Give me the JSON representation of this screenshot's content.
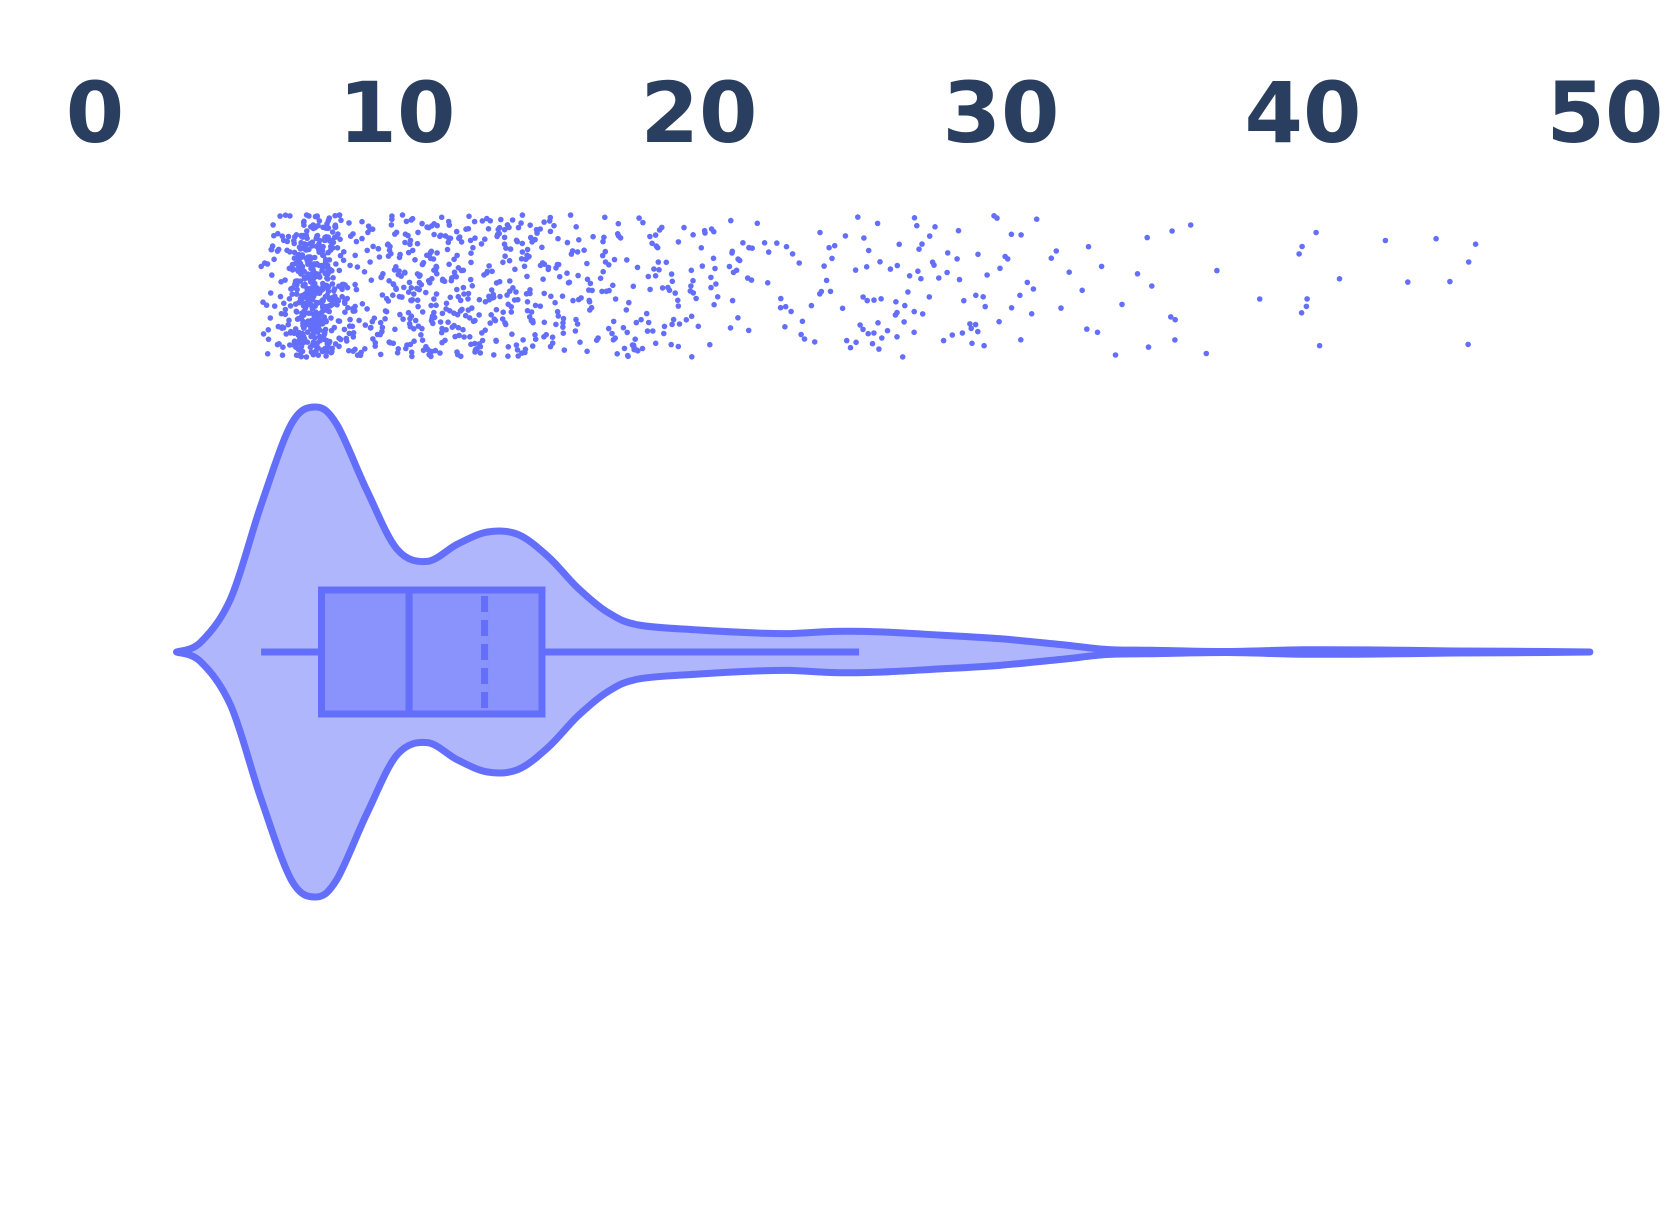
{
  "chart_data": {
    "type": "violin",
    "title": "",
    "xlabel": "",
    "ylabel": "",
    "xlim": [
      0,
      50
    ],
    "x_axis_position": "top",
    "x_ticks": [
      0,
      10,
      20,
      30,
      40,
      50
    ],
    "x_tick_labels": [
      "0",
      "10",
      "20",
      "30",
      "40",
      "50"
    ],
    "grid": false,
    "legend": "none",
    "colors": {
      "line": "#636efa",
      "violin_fill": "#b0b6fc",
      "box_fill": "#8a92fc",
      "points": "#636efa",
      "tick_text": "#2a3f5f"
    },
    "box": {
      "min": 5.5,
      "q1": 7.5,
      "median": 10.4,
      "mean": 12.9,
      "q3": 14.8,
      "upper_whisker": 25.3,
      "show_mean_line": true
    },
    "violin_density": [
      [
        2.7,
        0.0
      ],
      [
        3.5,
        0.04
      ],
      [
        4.5,
        0.22
      ],
      [
        5.5,
        0.6
      ],
      [
        6.5,
        0.93
      ],
      [
        7.3,
        1.0
      ],
      [
        8.0,
        0.93
      ],
      [
        9.0,
        0.66
      ],
      [
        10.0,
        0.42
      ],
      [
        11.0,
        0.37
      ],
      [
        12.0,
        0.44
      ],
      [
        13.0,
        0.49
      ],
      [
        14.0,
        0.48
      ],
      [
        15.0,
        0.39
      ],
      [
        16.0,
        0.26
      ],
      [
        17.0,
        0.16
      ],
      [
        18.0,
        0.11
      ],
      [
        20.0,
        0.09
      ],
      [
        22.0,
        0.077
      ],
      [
        23.0,
        0.075
      ],
      [
        24.5,
        0.084
      ],
      [
        26.0,
        0.082
      ],
      [
        28.0,
        0.069
      ],
      [
        30.0,
        0.054
      ],
      [
        32.0,
        0.03
      ],
      [
        33.5,
        0.01
      ],
      [
        35.0,
        0.007
      ],
      [
        37.5,
        0.002
      ],
      [
        40.0,
        0.009
      ],
      [
        42.5,
        0.008
      ],
      [
        45.0,
        0.004
      ],
      [
        47.0,
        0.003
      ],
      [
        49.5,
        0.0
      ]
    ],
    "points": {
      "n": 1200,
      "distribution": "mixture",
      "components": [
        {
          "weight": 0.31,
          "mean": 7.2,
          "sd": 0.55
        },
        {
          "weight": 0.42,
          "mean": 11.5,
          "sd": 2.6
        },
        {
          "weight": 0.15,
          "mean": 18.0,
          "sd": 2.3
        },
        {
          "weight": 0.09,
          "mean": 26.5,
          "sd": 3.2
        },
        {
          "weight": 0.03,
          "mean": 39.0,
          "sd": 5.0
        }
      ],
      "min": 5.5,
      "max": 48.9
    }
  }
}
